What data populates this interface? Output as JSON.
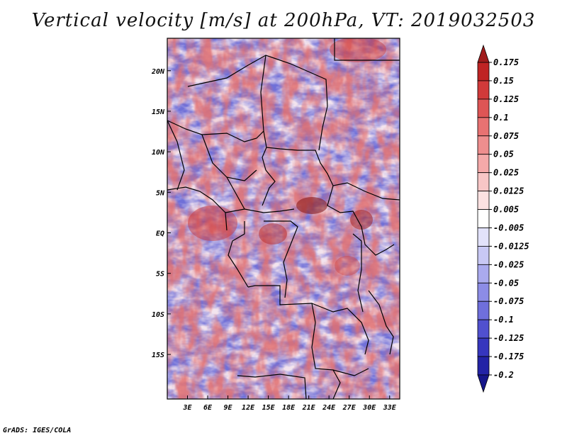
{
  "title": "Vertical velocity [m/s] at 200hPa, VT: 2019032503",
  "credit": "GrADS: IGES/COLA",
  "map": {
    "lon_range": [
      0,
      34.5
    ],
    "lat_range": [
      -20.5,
      24
    ],
    "lat_ticks": [
      {
        "value": 20,
        "label": "20N"
      },
      {
        "value": 15,
        "label": "15N"
      },
      {
        "value": 10,
        "label": "10N"
      },
      {
        "value": 5,
        "label": "5N"
      },
      {
        "value": 0,
        "label": "EQ"
      },
      {
        "value": -5,
        "label": "5S"
      },
      {
        "value": -10,
        "label": "10S"
      },
      {
        "value": -15,
        "label": "15S"
      }
    ],
    "lon_ticks": [
      {
        "value": 3,
        "label": "3E"
      },
      {
        "value": 6,
        "label": "6E"
      },
      {
        "value": 9,
        "label": "9E"
      },
      {
        "value": 12,
        "label": "12E"
      },
      {
        "value": 15,
        "label": "15E"
      },
      {
        "value": 18,
        "label": "18E"
      },
      {
        "value": 21,
        "label": "21E"
      },
      {
        "value": 24,
        "label": "24E"
      },
      {
        "value": 27,
        "label": "27E"
      },
      {
        "value": 30,
        "label": "30E"
      },
      {
        "value": 33,
        "label": "33E"
      }
    ],
    "field": "Vertical velocity",
    "units": "m/s"
  },
  "colorbar": {
    "labels": [
      "0.175",
      "0.15",
      "0.125",
      "0.1",
      "0.075",
      "0.05",
      "0.025",
      "0.0125",
      "0.005",
      "-0.005",
      "-0.0125",
      "-0.025",
      "-0.05",
      "-0.075",
      "-0.1",
      "-0.125",
      "-0.175",
      "-0.2"
    ],
    "colors": [
      "#a01c1c",
      "#bf2424",
      "#d13a3a",
      "#de5555",
      "#e87272",
      "#ee8e8e",
      "#f4a9a9",
      "#f8c6c6",
      "#fce2e2",
      "#ffffff",
      "#e2e2fa",
      "#c8c8f4",
      "#aaaaee",
      "#8c8ce6",
      "#6f6fdc",
      "#5050cf",
      "#3636be",
      "#2323a6",
      "#16168a"
    ]
  }
}
